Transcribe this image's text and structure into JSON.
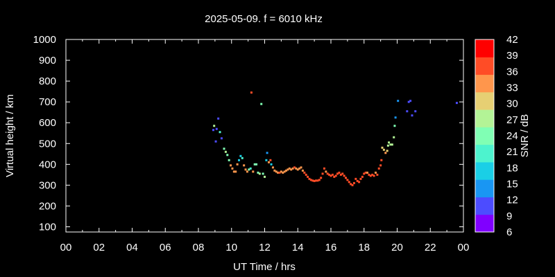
{
  "chart_data": {
    "type": "scatter",
    "title": "2025-05-09. f = 6010 kHz",
    "xlabel": "UT Time / hrs",
    "ylabel": "Virtual height / km",
    "xlim": [
      0,
      24
    ],
    "ylim": [
      75,
      1000
    ],
    "xticks": [
      "00",
      "02",
      "04",
      "06",
      "08",
      "10",
      "12",
      "14",
      "16",
      "18",
      "20",
      "22",
      "00"
    ],
    "yticks": [
      100,
      200,
      300,
      400,
      500,
      600,
      700,
      800,
      900,
      1000
    ],
    "colorbar": {
      "label": "SNR / dB",
      "min": 6,
      "max": 42,
      "ticks": [
        6,
        9,
        12,
        15,
        18,
        21,
        24,
        27,
        30,
        33,
        36,
        39,
        42
      ],
      "colors": [
        "#8000ff",
        "#4c4cff",
        "#1996f3",
        "#1acfe6",
        "#4df3ce",
        "#80ffb4",
        "#b3f396",
        "#e6cf73",
        "#ff964c",
        "#ff4c26",
        "#ff0000"
      ]
    },
    "points": [
      [
        8.9,
        565,
        12
      ],
      [
        8.95,
        585,
        27
      ],
      [
        9.05,
        510,
        12
      ],
      [
        9.1,
        570,
        12
      ],
      [
        9.2,
        620,
        12
      ],
      [
        9.3,
        555,
        21
      ],
      [
        9.4,
        525,
        12
      ],
      [
        9.55,
        475,
        24
      ],
      [
        9.65,
        460,
        27
      ],
      [
        9.75,
        445,
        24
      ],
      [
        9.85,
        420,
        24
      ],
      [
        9.95,
        395,
        33
      ],
      [
        10.05,
        380,
        33
      ],
      [
        10.15,
        365,
        33
      ],
      [
        10.25,
        365,
        33
      ],
      [
        10.35,
        400,
        33
      ],
      [
        10.45,
        420,
        18
      ],
      [
        10.55,
        440,
        18
      ],
      [
        10.65,
        430,
        21
      ],
      [
        10.75,
        395,
        33
      ],
      [
        10.85,
        375,
        33
      ],
      [
        10.95,
        365,
        33
      ],
      [
        11.05,
        375,
        24
      ],
      [
        11.15,
        380,
        21
      ],
      [
        11.2,
        745,
        36
      ],
      [
        11.3,
        365,
        33
      ],
      [
        11.4,
        400,
        24
      ],
      [
        11.5,
        400,
        24
      ],
      [
        11.6,
        360,
        24
      ],
      [
        11.7,
        355,
        27
      ],
      [
        11.8,
        690,
        24
      ],
      [
        11.9,
        355,
        24
      ],
      [
        12.0,
        340,
        27
      ],
      [
        12.1,
        420,
        18
      ],
      [
        12.15,
        455,
        15
      ],
      [
        12.25,
        410,
        33
      ],
      [
        12.35,
        420,
        36
      ],
      [
        12.4,
        400,
        18
      ],
      [
        12.5,
        385,
        33
      ],
      [
        12.6,
        370,
        33
      ],
      [
        12.7,
        365,
        33
      ],
      [
        12.8,
        360,
        33
      ],
      [
        12.9,
        360,
        36
      ],
      [
        13.0,
        365,
        33
      ],
      [
        13.1,
        360,
        33
      ],
      [
        13.2,
        365,
        33
      ],
      [
        13.3,
        370,
        33
      ],
      [
        13.4,
        375,
        33
      ],
      [
        13.5,
        380,
        33
      ],
      [
        13.6,
        375,
        33
      ],
      [
        13.7,
        380,
        33
      ],
      [
        13.8,
        385,
        36
      ],
      [
        13.9,
        380,
        33
      ],
      [
        14.0,
        375,
        33
      ],
      [
        14.1,
        380,
        33
      ],
      [
        14.2,
        385,
        33
      ],
      [
        14.3,
        370,
        33
      ],
      [
        14.4,
        360,
        36
      ],
      [
        14.5,
        350,
        36
      ],
      [
        14.6,
        340,
        36
      ],
      [
        14.7,
        330,
        36
      ],
      [
        14.8,
        325,
        36
      ],
      [
        14.9,
        322,
        36
      ],
      [
        15.0,
        320,
        36
      ],
      [
        15.1,
        322,
        36
      ],
      [
        15.2,
        322,
        36
      ],
      [
        15.3,
        325,
        36
      ],
      [
        15.4,
        335,
        36
      ],
      [
        15.5,
        355,
        36
      ],
      [
        15.6,
        380,
        36
      ],
      [
        15.7,
        365,
        33
      ],
      [
        15.8,
        355,
        36
      ],
      [
        15.9,
        350,
        36
      ],
      [
        16.0,
        345,
        36
      ],
      [
        16.1,
        350,
        36
      ],
      [
        16.2,
        340,
        36
      ],
      [
        16.3,
        345,
        36
      ],
      [
        16.4,
        355,
        36
      ],
      [
        16.5,
        360,
        36
      ],
      [
        16.6,
        350,
        36
      ],
      [
        16.7,
        355,
        36
      ],
      [
        16.8,
        345,
        36
      ],
      [
        16.9,
        335,
        36
      ],
      [
        17.0,
        325,
        36
      ],
      [
        17.1,
        315,
        36
      ],
      [
        17.2,
        305,
        36
      ],
      [
        17.3,
        300,
        36
      ],
      [
        17.4,
        310,
        36
      ],
      [
        17.5,
        330,
        36
      ],
      [
        17.6,
        320,
        36
      ],
      [
        17.7,
        315,
        36
      ],
      [
        17.8,
        330,
        36
      ],
      [
        17.9,
        340,
        36
      ],
      [
        18.0,
        355,
        36
      ],
      [
        18.1,
        360,
        36
      ],
      [
        18.2,
        360,
        33
      ],
      [
        18.3,
        350,
        36
      ],
      [
        18.4,
        345,
        36
      ],
      [
        18.5,
        350,
        36
      ],
      [
        18.6,
        345,
        36
      ],
      [
        18.7,
        360,
        33
      ],
      [
        18.8,
        350,
        36
      ],
      [
        18.9,
        380,
        36
      ],
      [
        19.0,
        395,
        36
      ],
      [
        19.05,
        420,
        36
      ],
      [
        19.1,
        480,
        30
      ],
      [
        19.2,
        470,
        30
      ],
      [
        19.3,
        455,
        33
      ],
      [
        19.4,
        465,
        30
      ],
      [
        19.45,
        490,
        27
      ],
      [
        19.5,
        505,
        27
      ],
      [
        19.6,
        495,
        27
      ],
      [
        19.7,
        495,
        27
      ],
      [
        19.8,
        530,
        27
      ],
      [
        19.85,
        585,
        24
      ],
      [
        19.9,
        625,
        15
      ],
      [
        20.05,
        705,
        15
      ],
      [
        20.6,
        655,
        12
      ],
      [
        20.7,
        700,
        12
      ],
      [
        20.8,
        705,
        12
      ],
      [
        20.9,
        635,
        12
      ],
      [
        21.1,
        655,
        12
      ],
      [
        23.6,
        695,
        12
      ]
    ]
  }
}
